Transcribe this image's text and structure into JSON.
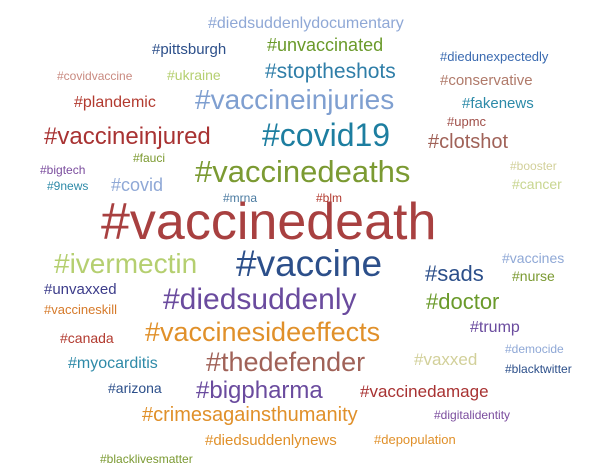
{
  "words": [
    {
      "text": "#diedsuddenlydocumentary",
      "color": "#8fa8d6"
    },
    {
      "text": "#pittsburgh",
      "color": "#2c4f8a"
    },
    {
      "text": "#unvaccinated",
      "color": "#6a9a2a"
    },
    {
      "text": "#diedunexpectedly",
      "color": "#3a6ab0"
    },
    {
      "text": "#covidvaccine",
      "color": "#c98a80"
    },
    {
      "text": "#ukraine",
      "color": "#b5cf70"
    },
    {
      "text": "#stoptheshots",
      "color": "#2f7ea8"
    },
    {
      "text": "#conservative",
      "color": "#b07a6a"
    },
    {
      "text": "#plandemic",
      "color": "#b23a2f"
    },
    {
      "text": "#vaccineinjuries",
      "color": "#7f9fd0"
    },
    {
      "text": "#fakenews",
      "color": "#2c8aa8"
    },
    {
      "text": "#upmc",
      "color": "#a0504a"
    },
    {
      "text": "#vaccineinjured",
      "color": "#a83232"
    },
    {
      "text": "#covid19",
      "color": "#1d7ea0"
    },
    {
      "text": "#clotshot",
      "color": "#a06258"
    },
    {
      "text": "#fauci",
      "color": "#7c9a30"
    },
    {
      "text": "#bigtech",
      "color": "#7b4d9e"
    },
    {
      "text": "#booster",
      "color": "#d2d09a"
    },
    {
      "text": "#vaccinedeaths",
      "color": "#7b9a32"
    },
    {
      "text": "#9news",
      "color": "#2e8aa8"
    },
    {
      "text": "#covid",
      "color": "#8fa8d6"
    },
    {
      "text": "#cancer",
      "color": "#c8d690"
    },
    {
      "text": "#mrna",
      "color": "#4a7aa0"
    },
    {
      "text": "#blm",
      "color": "#b23a2f"
    },
    {
      "text": "#vaccinedeath",
      "color": "#a84040"
    },
    {
      "text": "#vaccines",
      "color": "#8fa8d6"
    },
    {
      "text": "#ivermectin",
      "color": "#b5cf70"
    },
    {
      "text": "#vaccine",
      "color": "#2c4f8a"
    },
    {
      "text": "#sads",
      "color": "#2c4f8a"
    },
    {
      "text": "#nurse",
      "color": "#7b9a32"
    },
    {
      "text": "#unvaxxed",
      "color": "#3c3c8a"
    },
    {
      "text": "#diedsuddenly",
      "color": "#6a4b9e"
    },
    {
      "text": "#doctor",
      "color": "#6a9a2a"
    },
    {
      "text": "#vaccineskill",
      "color": "#d67a2a"
    },
    {
      "text": "#vaccinesideeffects",
      "color": "#e0902a"
    },
    {
      "text": "#trump",
      "color": "#6a4b9e"
    },
    {
      "text": "#canada",
      "color": "#b23a2f"
    },
    {
      "text": "#democide",
      "color": "#8fa8d6"
    },
    {
      "text": "#myocarditis",
      "color": "#2e8aa8"
    },
    {
      "text": "#thedefender",
      "color": "#a06258"
    },
    {
      "text": "#vaxxed",
      "color": "#d2d09a"
    },
    {
      "text": "#blacktwitter",
      "color": "#2c4f8a"
    },
    {
      "text": "#arizona",
      "color": "#2c4f8a"
    },
    {
      "text": "#bigpharma",
      "color": "#6a4b9e"
    },
    {
      "text": "#vaccinedamage",
      "color": "#a83232"
    },
    {
      "text": "#crimesagainsthumanity",
      "color": "#e0902a"
    },
    {
      "text": "#digitalidentity",
      "color": "#7b4d9e"
    },
    {
      "text": "#diedsuddenlynews",
      "color": "#e0902a"
    },
    {
      "text": "#depopulation",
      "color": "#e0902a"
    },
    {
      "text": "#blacklivesmatter",
      "color": "#7b9a32"
    }
  ]
}
